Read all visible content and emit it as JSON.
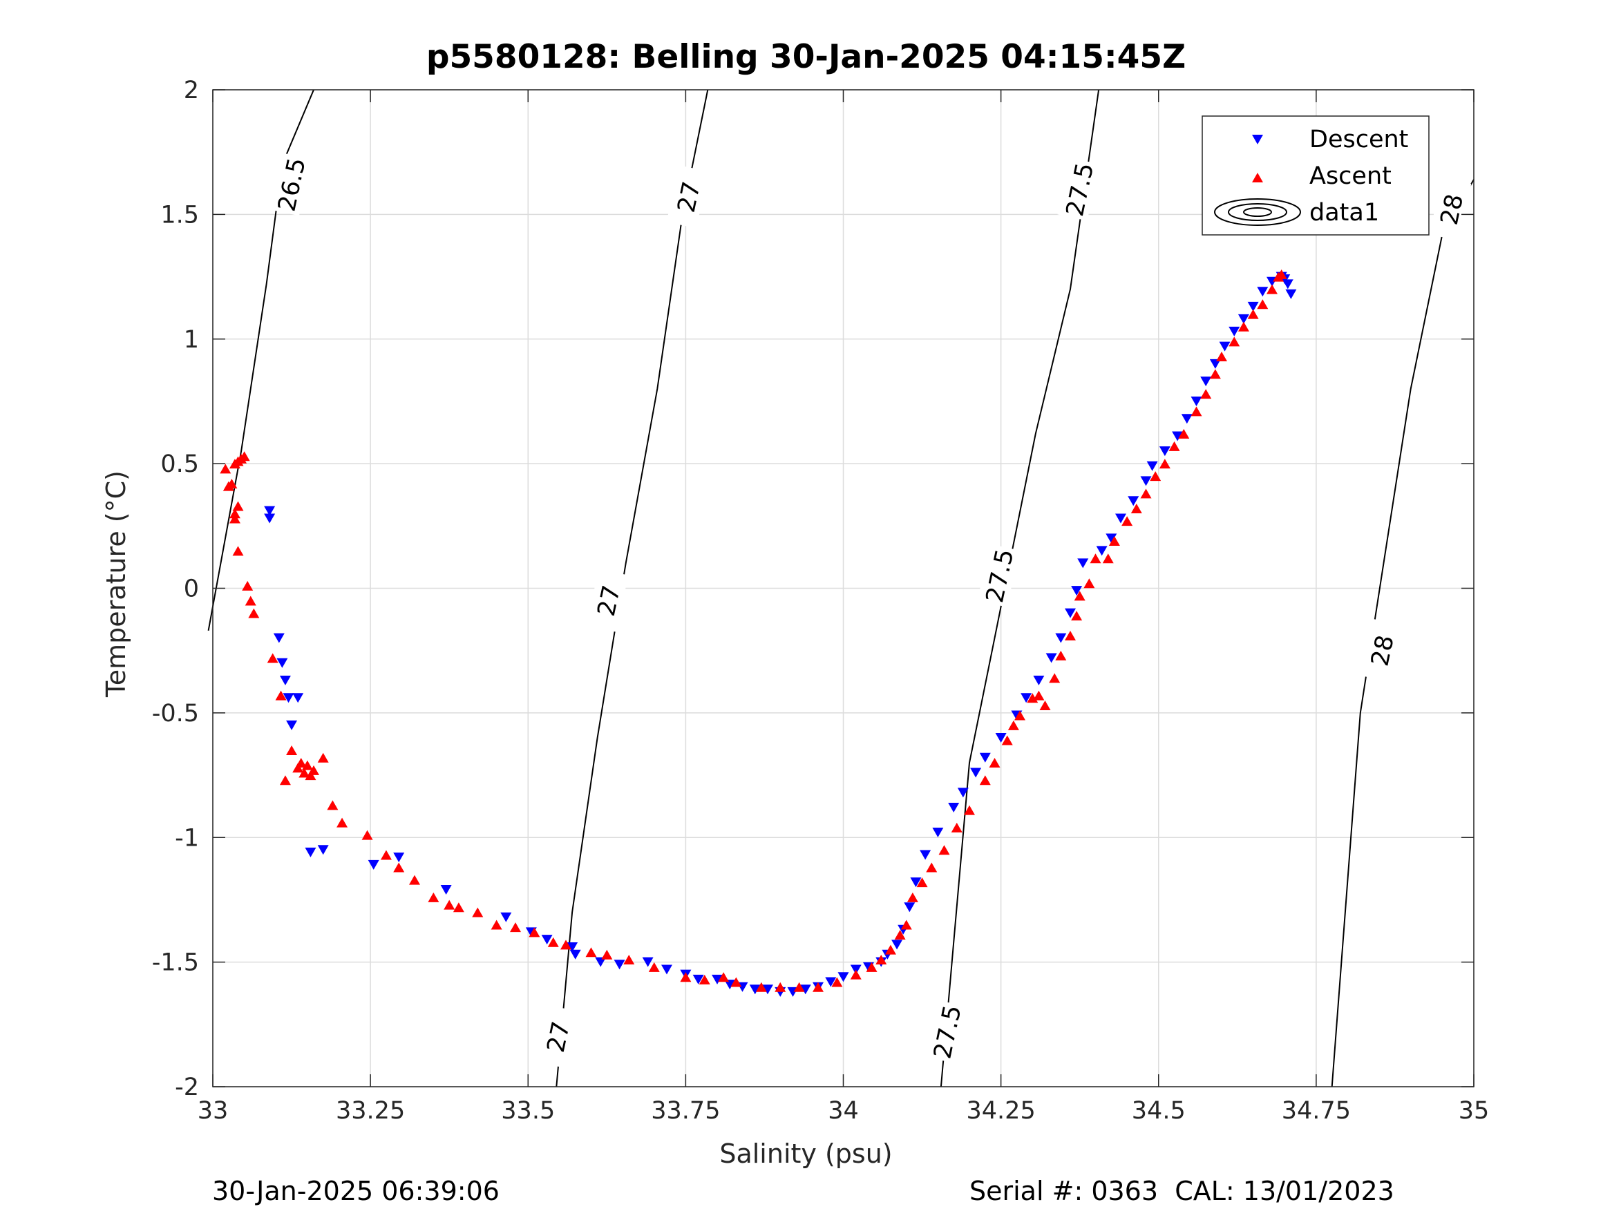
{
  "title": "p5580128: Belling 30-Jan-2025 04:15:45Z",
  "footer": {
    "timestamp": "30-Jan-2025 06:39:06",
    "serial_cal": "Serial #: 0363  CAL: 13/01/2023"
  },
  "colors": {
    "descent": "#0000ff",
    "ascent": "#ff0000",
    "grid": "#dcdcdc",
    "axes": "#262626"
  },
  "chart_data": {
    "type": "scatter",
    "title": "p5580128: Belling 30-Jan-2025 04:15:45Z",
    "xlabel": "Salinity (psu)",
    "ylabel": "Temperature (°C)",
    "xlim": [
      33,
      35
    ],
    "ylim": [
      -2,
      2
    ],
    "xticks": [
      33,
      33.25,
      33.5,
      33.75,
      34,
      34.25,
      34.5,
      34.75,
      35
    ],
    "yticks": [
      -2,
      -1.5,
      -1,
      -0.5,
      0,
      0.5,
      1,
      1.5,
      2
    ],
    "xtick_labels": [
      "33",
      "33.25",
      "33.5",
      "33.75",
      "34",
      "34.25",
      "34.5",
      "34.75",
      "35"
    ],
    "ytick_labels": [
      "-2",
      "-1.5",
      "-1",
      "-0.5",
      "0",
      "0.5",
      "1",
      "1.5",
      "2"
    ],
    "grid": true,
    "legend": {
      "placement": "top-right",
      "entries": [
        "Descent",
        "Ascent",
        "data1"
      ]
    },
    "series": [
      {
        "name": "Descent",
        "marker": "triangle-down",
        "color": "#0000ff",
        "points": [
          [
            33.09,
            0.31
          ],
          [
            33.09,
            0.28
          ],
          [
            33.105,
            -0.2
          ],
          [
            33.11,
            -0.3
          ],
          [
            33.115,
            -0.37
          ],
          [
            33.12,
            -0.44
          ],
          [
            33.125,
            -0.55
          ],
          [
            33.135,
            -0.44
          ],
          [
            33.155,
            -1.06
          ],
          [
            33.175,
            -1.05
          ],
          [
            33.255,
            -1.11
          ],
          [
            33.295,
            -1.08
          ],
          [
            33.37,
            -1.21
          ],
          [
            33.465,
            -1.32
          ],
          [
            33.505,
            -1.38
          ],
          [
            33.53,
            -1.41
          ],
          [
            33.57,
            -1.44
          ],
          [
            33.575,
            -1.47
          ],
          [
            33.615,
            -1.5
          ],
          [
            33.645,
            -1.51
          ],
          [
            33.69,
            -1.5
          ],
          [
            33.72,
            -1.53
          ],
          [
            33.75,
            -1.55
          ],
          [
            33.77,
            -1.57
          ],
          [
            33.8,
            -1.57
          ],
          [
            33.82,
            -1.59
          ],
          [
            33.84,
            -1.6
          ],
          [
            33.86,
            -1.61
          ],
          [
            33.88,
            -1.61
          ],
          [
            33.9,
            -1.62
          ],
          [
            33.92,
            -1.62
          ],
          [
            33.94,
            -1.61
          ],
          [
            33.96,
            -1.6
          ],
          [
            33.98,
            -1.58
          ],
          [
            34.0,
            -1.56
          ],
          [
            34.02,
            -1.53
          ],
          [
            34.04,
            -1.52
          ],
          [
            34.06,
            -1.5
          ],
          [
            34.07,
            -1.47
          ],
          [
            34.085,
            -1.43
          ],
          [
            34.095,
            -1.37
          ],
          [
            34.105,
            -1.28
          ],
          [
            34.115,
            -1.18
          ],
          [
            34.13,
            -1.07
          ],
          [
            34.15,
            -0.98
          ],
          [
            34.175,
            -0.88
          ],
          [
            34.19,
            -0.82
          ],
          [
            34.21,
            -0.74
          ],
          [
            34.225,
            -0.68
          ],
          [
            34.25,
            -0.6
          ],
          [
            34.275,
            -0.51
          ],
          [
            34.29,
            -0.44
          ],
          [
            34.31,
            -0.37
          ],
          [
            34.33,
            -0.28
          ],
          [
            34.345,
            -0.2
          ],
          [
            34.36,
            -0.1
          ],
          [
            34.37,
            -0.01
          ],
          [
            34.38,
            0.1
          ],
          [
            34.41,
            0.15
          ],
          [
            34.425,
            0.2
          ],
          [
            34.44,
            0.28
          ],
          [
            34.46,
            0.35
          ],
          [
            34.48,
            0.43
          ],
          [
            34.49,
            0.49
          ],
          [
            34.51,
            0.55
          ],
          [
            34.53,
            0.61
          ],
          [
            34.545,
            0.68
          ],
          [
            34.56,
            0.75
          ],
          [
            34.575,
            0.83
          ],
          [
            34.59,
            0.9
          ],
          [
            34.605,
            0.97
          ],
          [
            34.62,
            1.03
          ],
          [
            34.635,
            1.08
          ],
          [
            34.65,
            1.13
          ],
          [
            34.665,
            1.19
          ],
          [
            34.68,
            1.23
          ],
          [
            34.695,
            1.25
          ],
          [
            34.7,
            1.24
          ],
          [
            34.705,
            1.22
          ],
          [
            34.71,
            1.18
          ]
        ]
      },
      {
        "name": "Ascent",
        "marker": "triangle-up",
        "color": "#ff0000",
        "points": [
          [
            33.02,
            0.48
          ],
          [
            33.025,
            0.41
          ],
          [
            33.03,
            0.42
          ],
          [
            33.035,
            0.5
          ],
          [
            33.04,
            0.51
          ],
          [
            33.045,
            0.52
          ],
          [
            33.05,
            0.53
          ],
          [
            33.035,
            0.3
          ],
          [
            33.04,
            0.33
          ],
          [
            33.035,
            0.28
          ],
          [
            33.04,
            0.15
          ],
          [
            33.055,
            0.01
          ],
          [
            33.06,
            -0.05
          ],
          [
            33.065,
            -0.1
          ],
          [
            33.095,
            -0.28
          ],
          [
            33.108,
            -0.43
          ],
          [
            33.115,
            -0.77
          ],
          [
            33.125,
            -0.65
          ],
          [
            33.135,
            -0.72
          ],
          [
            33.14,
            -0.7
          ],
          [
            33.145,
            -0.74
          ],
          [
            33.15,
            -0.71
          ],
          [
            33.155,
            -0.75
          ],
          [
            33.16,
            -0.73
          ],
          [
            33.175,
            -0.68
          ],
          [
            33.19,
            -0.87
          ],
          [
            33.205,
            -0.94
          ],
          [
            33.245,
            -0.99
          ],
          [
            33.275,
            -1.07
          ],
          [
            33.295,
            -1.12
          ],
          [
            33.32,
            -1.17
          ],
          [
            33.35,
            -1.24
          ],
          [
            33.375,
            -1.27
          ],
          [
            33.39,
            -1.28
          ],
          [
            33.42,
            -1.3
          ],
          [
            33.45,
            -1.35
          ],
          [
            33.48,
            -1.36
          ],
          [
            33.51,
            -1.38
          ],
          [
            33.54,
            -1.42
          ],
          [
            33.56,
            -1.43
          ],
          [
            33.6,
            -1.46
          ],
          [
            33.625,
            -1.47
          ],
          [
            33.66,
            -1.49
          ],
          [
            33.7,
            -1.52
          ],
          [
            33.75,
            -1.56
          ],
          [
            33.78,
            -1.57
          ],
          [
            33.81,
            -1.56
          ],
          [
            33.83,
            -1.58
          ],
          [
            33.87,
            -1.6
          ],
          [
            33.9,
            -1.6
          ],
          [
            33.93,
            -1.6
          ],
          [
            33.96,
            -1.6
          ],
          [
            33.99,
            -1.58
          ],
          [
            34.02,
            -1.55
          ],
          [
            34.045,
            -1.52
          ],
          [
            34.06,
            -1.49
          ],
          [
            34.075,
            -1.45
          ],
          [
            34.09,
            -1.39
          ],
          [
            34.1,
            -1.35
          ],
          [
            34.11,
            -1.24
          ],
          [
            34.125,
            -1.18
          ],
          [
            34.14,
            -1.12
          ],
          [
            34.16,
            -1.05
          ],
          [
            34.18,
            -0.96
          ],
          [
            34.2,
            -0.89
          ],
          [
            34.225,
            -0.77
          ],
          [
            34.24,
            -0.7
          ],
          [
            34.26,
            -0.61
          ],
          [
            34.27,
            -0.55
          ],
          [
            34.28,
            -0.51
          ],
          [
            34.3,
            -0.44
          ],
          [
            34.31,
            -0.43
          ],
          [
            34.32,
            -0.47
          ],
          [
            34.335,
            -0.36
          ],
          [
            34.345,
            -0.27
          ],
          [
            34.36,
            -0.19
          ],
          [
            34.37,
            -0.11
          ],
          [
            34.375,
            -0.03
          ],
          [
            34.39,
            0.02
          ],
          [
            34.4,
            0.12
          ],
          [
            34.42,
            0.12
          ],
          [
            34.43,
            0.19
          ],
          [
            34.45,
            0.27
          ],
          [
            34.465,
            0.32
          ],
          [
            34.48,
            0.38
          ],
          [
            34.495,
            0.45
          ],
          [
            34.51,
            0.5
          ],
          [
            34.525,
            0.57
          ],
          [
            34.54,
            0.62
          ],
          [
            34.56,
            0.71
          ],
          [
            34.575,
            0.78
          ],
          [
            34.59,
            0.86
          ],
          [
            34.6,
            0.93
          ],
          [
            34.62,
            0.99
          ],
          [
            34.635,
            1.05
          ],
          [
            34.65,
            1.1
          ],
          [
            34.665,
            1.14
          ],
          [
            34.68,
            1.2
          ],
          [
            34.69,
            1.25
          ],
          [
            34.695,
            1.26
          ]
        ]
      }
    ],
    "contours": [
      {
        "level": "26.5",
        "points": [
          [
            32.993,
            -0.17
          ],
          [
            33.045,
            0.55
          ],
          [
            33.085,
            1.22
          ],
          [
            33.11,
            1.7
          ],
          [
            33.16,
            2.0
          ]
        ],
        "labels": [
          {
            "text": "26.5",
            "at": [
              33.125,
              1.62
            ]
          }
        ]
      },
      {
        "level": "27",
        "points": [
          [
            33.545,
            -2.0
          ],
          [
            33.57,
            -1.3
          ],
          [
            33.61,
            -0.6
          ],
          [
            33.655,
            0.1
          ],
          [
            33.705,
            0.8
          ],
          [
            33.745,
            1.5
          ],
          [
            33.785,
            2.0
          ]
        ],
        "labels": [
          {
            "text": "27",
            "at": [
              33.548,
              -1.8
            ]
          },
          {
            "text": "27",
            "at": [
              33.628,
              -0.05
            ]
          },
          {
            "text": "27",
            "at": [
              33.755,
              1.57
            ]
          }
        ]
      },
      {
        "level": "27.5",
        "points": [
          [
            34.155,
            -2.0
          ],
          [
            34.2,
            -0.7
          ],
          [
            34.24,
            -0.2
          ],
          [
            34.305,
            0.62
          ],
          [
            34.36,
            1.2
          ],
          [
            34.405,
            2.0
          ]
        ],
        "labels": [
          {
            "text": "27.5",
            "at": [
              34.165,
              -1.78
            ]
          },
          {
            "text": "27.5",
            "at": [
              34.248,
              0.05
            ]
          },
          {
            "text": "27.5",
            "at": [
              34.375,
              1.6
            ]
          }
        ]
      },
      {
        "level": "28",
        "points": [
          [
            34.775,
            -2.0
          ],
          [
            34.82,
            -0.5
          ],
          [
            34.9,
            0.8
          ],
          [
            34.95,
            1.42
          ],
          [
            35.0,
            1.64
          ]
        ],
        "labels": [
          {
            "text": "28",
            "at": [
              34.855,
              -0.25
            ]
          },
          {
            "text": "28",
            "at": [
              34.965,
              1.52
            ]
          }
        ]
      }
    ]
  }
}
